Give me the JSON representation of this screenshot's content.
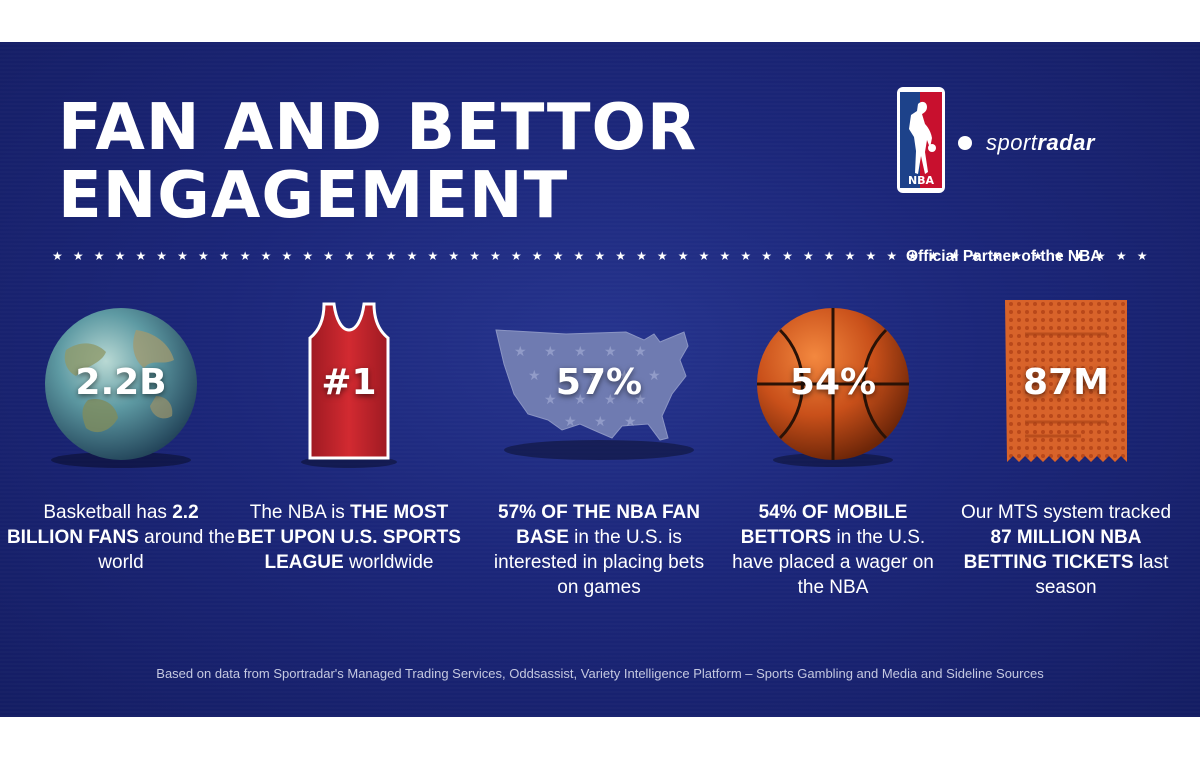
{
  "header": {
    "title_line1": "FAN AND BETTOR",
    "title_line2": "ENGAGEMENT"
  },
  "branding": {
    "nba_logo_text": "NBA",
    "sportradar_light": "sport",
    "sportradar_bold": "radar",
    "partner_text": "Official Partner of the NBA"
  },
  "colors": {
    "background": "#1b2679",
    "nba_blue": "#1d428a",
    "nba_red": "#c8102e",
    "basketball_orange": "#d9581c",
    "jersey_red": "#c8232c"
  },
  "stats": [
    {
      "value": "2.2B",
      "icon": "globe-icon",
      "desc_pre": "Basketball has ",
      "desc_bold": "2.2 BILLION FANS",
      "desc_post": " around the world"
    },
    {
      "value": "#1",
      "icon": "jersey-icon",
      "desc_pre": "The NBA is ",
      "desc_bold": "THE MOST BET UPON U.S. SPORTS LEAGUE",
      "desc_post": " worldwide"
    },
    {
      "value": "57%",
      "icon": "us-map-icon",
      "desc_pre": "",
      "desc_bold": "57% OF THE NBA FAN BASE",
      "desc_post": " in the U.S. is interested in placing bets on games"
    },
    {
      "value": "54%",
      "icon": "basketball-icon",
      "desc_pre": "",
      "desc_bold": "54% OF MOBILE BETTORS",
      "desc_post": " in the U.S. have placed a wager on the NBA"
    },
    {
      "value": "87M",
      "icon": "betting-ticket-icon",
      "desc_pre": "Our MTS system tracked ",
      "desc_bold": "87 MILLION NBA BETTING TICKETS",
      "desc_post": " last season"
    }
  ],
  "footnote": "Based on data from Sportradar's Managed Trading Services, Oddsassist, Variety Intelligence Platform – Sports Gambling and Media and Sideline Sources"
}
